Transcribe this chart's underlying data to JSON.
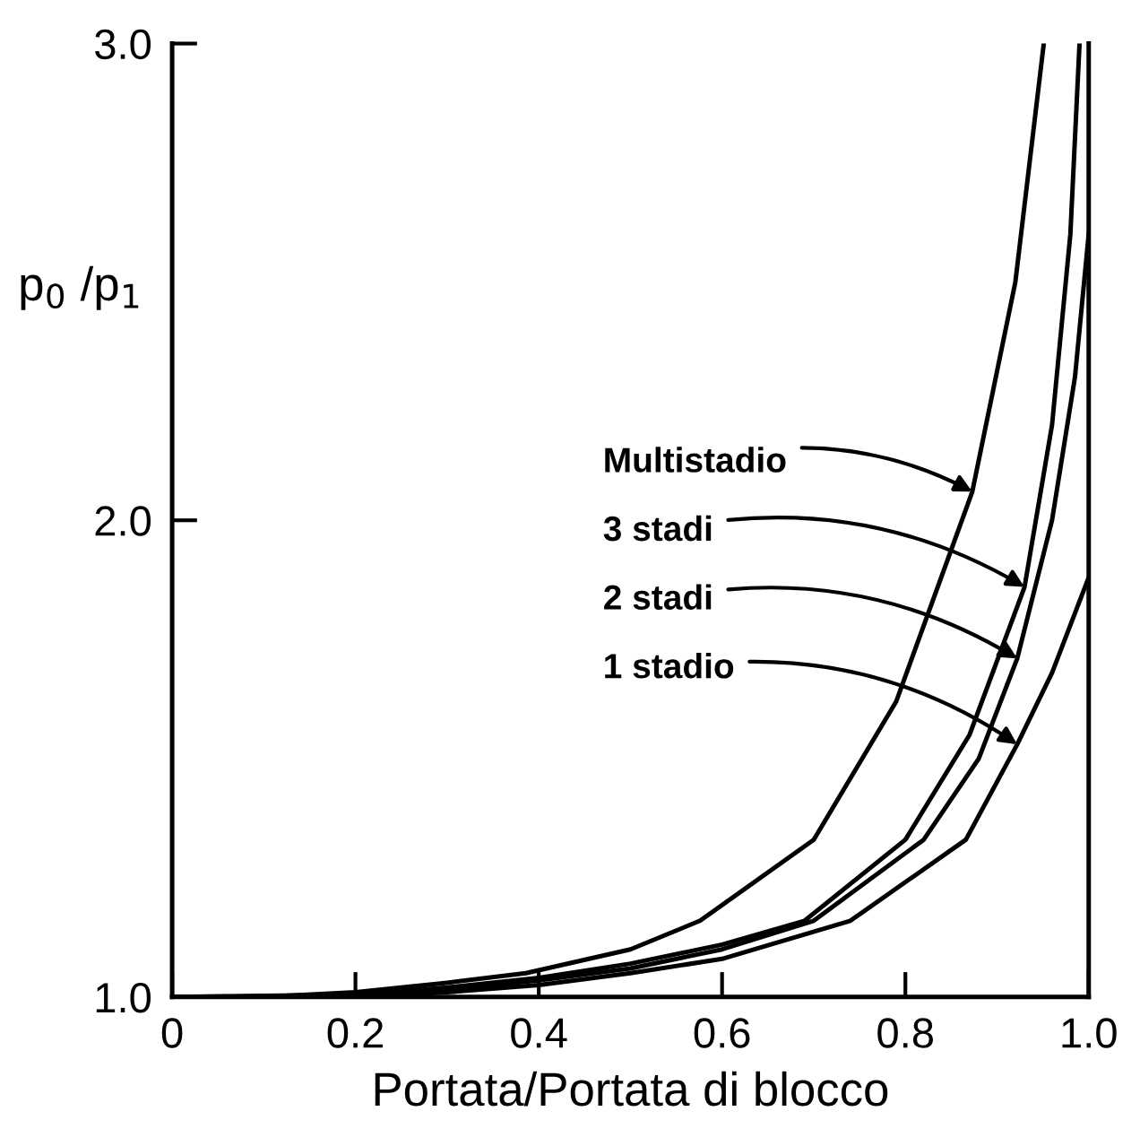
{
  "chart_data": {
    "type": "line",
    "xlabel": "Portata/Portata di blocco",
    "ylabel": "p$_{0}$ /p$_{1}$",
    "xlim": [
      0,
      1.0
    ],
    "ylim": [
      1.0,
      3.0
    ],
    "xticks": [
      0,
      0.2,
      0.4,
      0.6,
      0.8,
      {
        "value": 1.0,
        "label": "1.0"
      }
    ],
    "yticks": [
      {
        "value": 1.0,
        "label": "1.0"
      },
      {
        "value": 2.0,
        "label": "2.0"
      },
      {
        "value": 3.0,
        "label": "3.0"
      }
    ],
    "grid": false,
    "legend": false,
    "marker": "none",
    "line_style": "solid",
    "series": [
      {
        "color": "#000000",
        "x": [
          0,
          0.1,
          0.2,
          0.3,
          0.386,
          0.5,
          0.576,
          0.7,
          0.79,
          0.873,
          0.92,
          0.951
        ],
        "values": [
          1.0,
          1.0,
          1.01,
          1.03,
          1.05,
          1.1,
          1.16,
          1.33,
          1.62,
          2.06,
          2.5,
          3.0
        ]
      },
      {
        "color": "#000000",
        "x": [
          0,
          0.2,
          0.3,
          0.4,
          0.5,
          0.6,
          0.69,
          0.8,
          0.87,
          0.93,
          0.96,
          0.98,
          0.99
        ],
        "values": [
          1.0,
          1.005,
          1.02,
          1.04,
          1.07,
          1.11,
          1.16,
          1.33,
          1.55,
          1.86,
          2.2,
          2.6,
          3.0
        ]
      },
      {
        "color": "#000000",
        "x": [
          0,
          0.2,
          0.3,
          0.4,
          0.5,
          0.6,
          0.7,
          0.82,
          0.88,
          0.922,
          0.96,
          0.985,
          1.0
        ],
        "values": [
          1.0,
          1.003,
          1.015,
          1.035,
          1.06,
          1.1,
          1.16,
          1.33,
          1.5,
          1.71,
          2.0,
          2.3,
          2.6
        ]
      },
      {
        "color": "#000000",
        "x": [
          0,
          0.2,
          0.3,
          0.4,
          0.5,
          0.6,
          0.74,
          0.866,
          0.922,
          0.96,
          1.0
        ],
        "values": [
          1.0,
          1.0,
          1.01,
          1.025,
          1.05,
          1.08,
          1.16,
          1.33,
          1.53,
          1.68,
          1.88
        ]
      }
    ],
    "annotations": [
      {
        "text": "Multistadio",
        "x": 0.873,
        "y": 2.06
      },
      {
        "text": "3 stadi",
        "x": 0.93,
        "y": 1.86
      },
      {
        "text": "2 stadi",
        "x": 0.922,
        "y": 1.71
      },
      {
        "text": "1 stadio",
        "x": 0.922,
        "y": 1.53
      }
    ]
  }
}
